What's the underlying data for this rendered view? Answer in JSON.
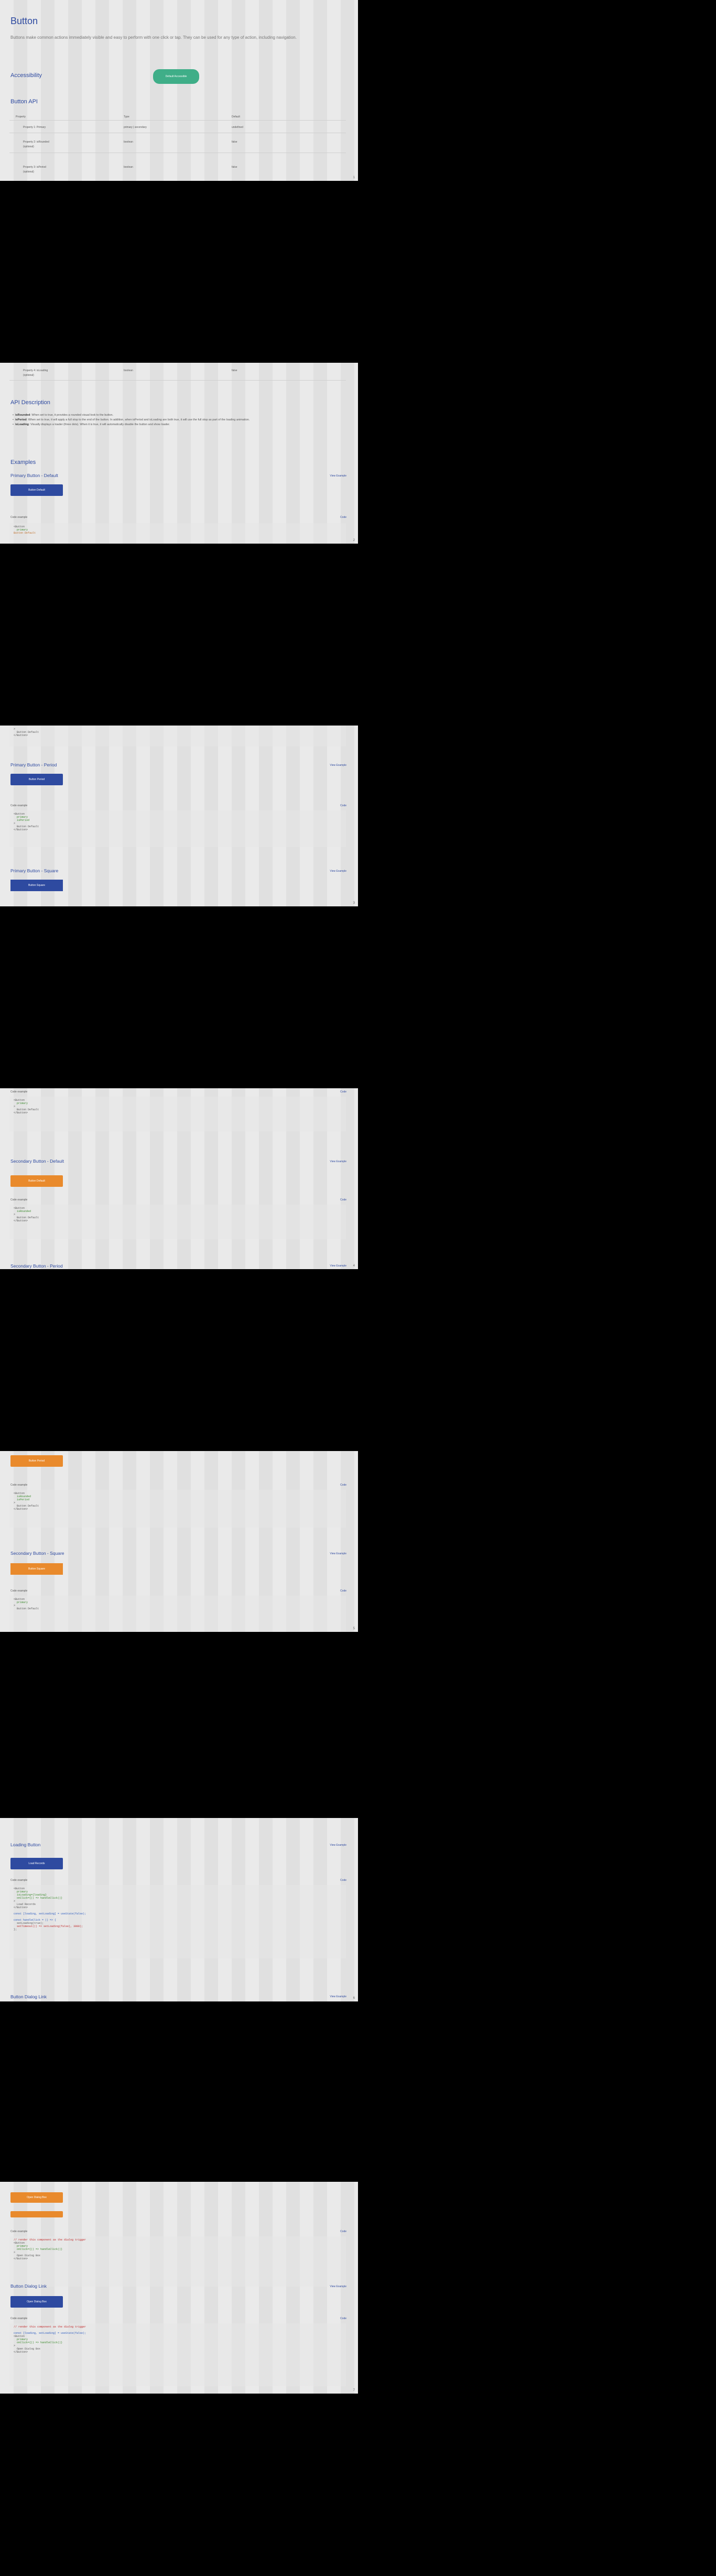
{
  "page": {
    "title": "Button",
    "intro": "Buttons make common actions immediately visible and easy to perform with one click or tap. They can be used for any type of action, including navigation."
  },
  "accessibility": {
    "heading": "Accessibility",
    "button_label": "Default Accessible"
  },
  "api": {
    "heading": "Button API",
    "columns": [
      "Property",
      "Type",
      "Default"
    ],
    "rows": [
      {
        "name": "Property 1: Primary",
        "type": "primary | secondary",
        "default": "undefined"
      },
      {
        "name": "Property 2: isRounded",
        "note": "(optional)",
        "type": "boolean",
        "default": "false"
      },
      {
        "name": "Property 3: isPeriod",
        "note": "(optional)",
        "type": "boolean",
        "default": "false"
      },
      {
        "name": "Property 4: isLoading",
        "note": "(optional)",
        "type": "boolean",
        "default": "false"
      }
    ]
  },
  "description": {
    "heading": "API Description",
    "items": [
      {
        "key": "isRounded",
        "text": "When set to true, it provides a rounded visual look to the button."
      },
      {
        "key": "isPeriod",
        "text": "When set to true, it will apply a full stop to the end of the button. In addition, when isPeriod and isLoading are both true, it will use the full stop as part of the loading animation."
      },
      {
        "key": "isLoading",
        "text": "Visually displays a loader (three dots). When it is true, it will automatically disable the button and show loader."
      }
    ]
  },
  "examples_heading": "Examples",
  "labels": {
    "result": "Result",
    "code": "Code",
    "view_example": "View Example",
    "code_example": "Code example"
  },
  "examples": [
    {
      "id": "primary-default",
      "title": "Primary Button - Default",
      "button": "Button Default"
    },
    {
      "id": "primary-period",
      "title": "Primary Button - Period",
      "button": "Button Period"
    },
    {
      "id": "primary-square",
      "title": "Primary Button - Square",
      "button": "Button Square"
    },
    {
      "id": "secondary-default",
      "title": "Secondary Button - Default",
      "button": "Button Default"
    },
    {
      "id": "secondary-period",
      "title": "Secondary Button - Period",
      "button": "Button Period"
    },
    {
      "id": "secondary-square",
      "title": "Secondary Button - Square",
      "button": "Button Square"
    },
    {
      "id": "loading",
      "title": "Loading Button",
      "button": "Load Records"
    },
    {
      "id": "dialog",
      "title": "Button Dialog Link",
      "button": "Open Dialog Box"
    }
  ],
  "snippets": {
    "button_open": "<Button",
    "primary": "primary",
    "rounded": "isRounded",
    "period": "isPeriod",
    "loading": "isLoading={loading}",
    "onclick": "onClick={() => handleClick()}",
    "close": ">",
    "content": "Button Default",
    "button_close": "</Button>",
    "const": "const [loading, setLoading] = useState(false);",
    "fn": "const handleClick = () => {",
    "set": "setLoading(true);",
    "timeout": "setTimeout(() => setLoading(false), 3000);",
    "end": "};",
    "comment": "// render this component as the dialog trigger"
  },
  "colors": {
    "primary": "#2e4aa0",
    "secondary": "#e98a2c",
    "accessible": "#3fae88"
  }
}
